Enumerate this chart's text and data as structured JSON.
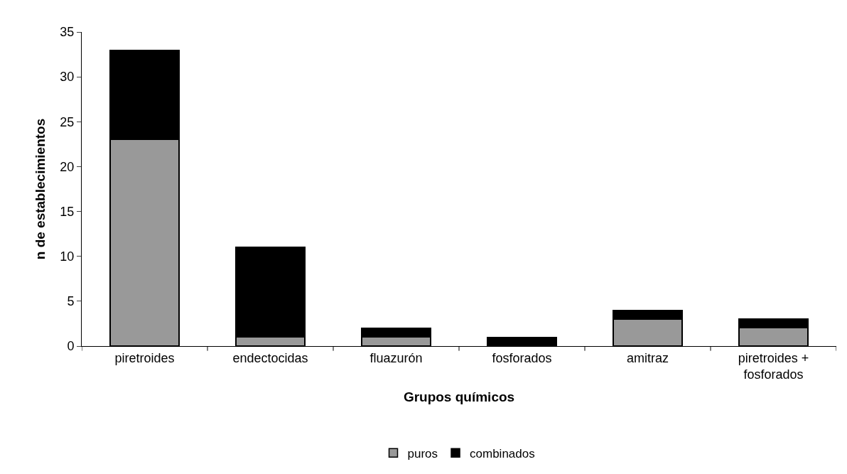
{
  "chart_data": {
    "type": "bar",
    "stacked": true,
    "xlabel": "Grupos químicos",
    "ylabel": "n de establecimientos",
    "categories": [
      "piretroides",
      "endectocidas",
      "fluazurón",
      "fosforados",
      "amitraz",
      "piretroides + fosforados"
    ],
    "series": [
      {
        "name": "puros",
        "color": "#999999",
        "values": [
          23,
          1,
          1,
          0,
          3,
          2
        ]
      },
      {
        "name": "combinados",
        "color": "#000000",
        "values": [
          10,
          10,
          1,
          1,
          1,
          1
        ]
      }
    ],
    "ylim": [
      0,
      35
    ],
    "yticks": [
      0,
      5,
      10,
      15,
      20,
      25,
      30,
      35
    ],
    "legend": "bottom"
  }
}
